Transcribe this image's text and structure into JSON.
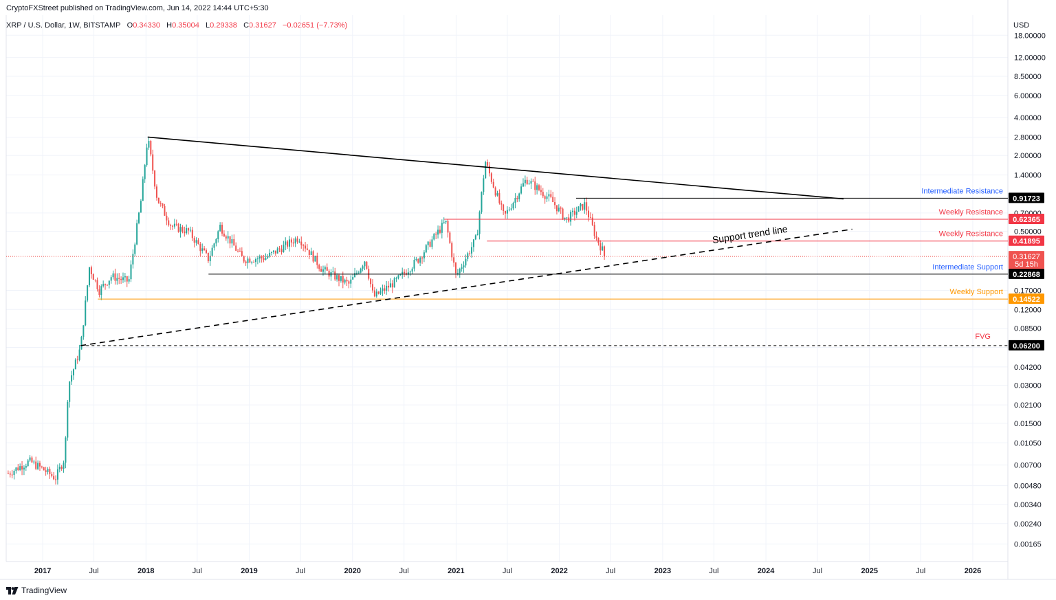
{
  "header": {
    "publisher": "CryptoFXStreet published on TradingView.com, Jun 14, 2022 14:44 UTC+5:30"
  },
  "legend": {
    "symbol": "XRP / U.S. Dollar, 1W, BITSTAMP",
    "open_label": "O",
    "open": "0.34330",
    "high_label": "H",
    "high": "0.35004",
    "low_label": "L",
    "low": "0.29338",
    "close_label": "C",
    "close": "0.31627",
    "change": "−0.02651 (−7.73%)"
  },
  "footer": {
    "brand": "TradingView"
  },
  "colors": {
    "up": "#26a69a",
    "down": "#ef5350",
    "resistance": "#f23645",
    "support_blue": "#2962ff",
    "weekly_support": "#ff9800",
    "black": "#000000"
  },
  "chart_data": {
    "type": "candlestick",
    "title": "XRP / U.S. Dollar, 1W, BITSTAMP",
    "currency_label": "USD",
    "y_scale": "log",
    "ylim": [
      0.0012,
      26
    ],
    "y_ticks": [
      "18.00000",
      "12.00000",
      "8.50000",
      "6.00000",
      "4.00000",
      "2.80000",
      "2.00000",
      "1.40000",
      "0.70000",
      "0.50000",
      "0.17000",
      "0.12000",
      "0.08500",
      "0.06000",
      "0.04200",
      "0.03000",
      "0.02100",
      "0.01500",
      "0.01050",
      "0.00700",
      "0.00480",
      "0.00340",
      "0.00240",
      "0.00165"
    ],
    "x_ticks": [
      "2017",
      "Jul",
      "2018",
      "Jul",
      "2019",
      "Jul",
      "2020",
      "Jul",
      "2021",
      "Jul",
      "2022",
      "Jul",
      "2023",
      "Jul",
      "2024",
      "Jul",
      "2025",
      "Jul",
      "2026"
    ],
    "price_path": [
      [
        "2016-09-01",
        0.006
      ],
      [
        "2016-11-15",
        0.0075
      ],
      [
        "2017-01-01",
        0.0065
      ],
      [
        "2017-02-15",
        0.0055
      ],
      [
        "2017-03-20",
        0.008
      ],
      [
        "2017-04-01",
        0.03
      ],
      [
        "2017-05-15",
        0.06
      ],
      [
        "2017-06-15",
        0.26
      ],
      [
        "2017-07-20",
        0.17
      ],
      [
        "2017-09-01",
        0.22
      ],
      [
        "2017-11-01",
        0.2
      ],
      [
        "2017-12-15",
        0.9
      ],
      [
        "2018-01-07",
        2.8
      ],
      [
        "2018-02-10",
        0.9
      ],
      [
        "2018-04-01",
        0.55
      ],
      [
        "2018-06-01",
        0.5
      ],
      [
        "2018-08-10",
        0.3
      ],
      [
        "2018-09-20",
        0.55
      ],
      [
        "2018-12-10",
        0.3
      ],
      [
        "2019-03-01",
        0.31
      ],
      [
        "2019-06-25",
        0.45
      ],
      [
        "2019-09-15",
        0.25
      ],
      [
        "2019-12-20",
        0.19
      ],
      [
        "2020-02-15",
        0.3
      ],
      [
        "2020-03-15",
        0.15
      ],
      [
        "2020-06-01",
        0.2
      ],
      [
        "2020-08-20",
        0.3
      ],
      [
        "2020-11-25",
        0.6
      ],
      [
        "2021-01-01",
        0.22
      ],
      [
        "2021-03-15",
        0.45
      ],
      [
        "2021-04-14",
        1.8
      ],
      [
        "2021-06-20",
        0.65
      ],
      [
        "2021-09-06",
        1.3
      ],
      [
        "2021-12-01",
        0.9
      ],
      [
        "2022-01-25",
        0.62
      ],
      [
        "2022-04-01",
        0.82
      ],
      [
        "2022-05-10",
        0.45
      ],
      [
        "2022-06-14",
        0.31627
      ]
    ],
    "levels": [
      {
        "label": "Intermediate Resistance",
        "price": 0.91723,
        "value_label": "0.91723",
        "color": "#2962ff",
        "tag_color": "#000000",
        "start": "2022-03-01"
      },
      {
        "label": "Weekly Resistance",
        "price": 0.62365,
        "value_label": "0.62365",
        "color": "#f23645",
        "tag_color": "#f23645",
        "start": "2020-11-20"
      },
      {
        "label": "Weekly Resistance",
        "price": 0.41895,
        "value_label": "0.41895",
        "color": "#f23645",
        "tag_color": "#f23645",
        "start": "2021-04-20"
      },
      {
        "label": "Intermediate Support",
        "price": 0.22868,
        "value_label": "0.22868",
        "color": "#2962ff",
        "tag_color": "#000000",
        "start": "2018-08-10"
      },
      {
        "label": "Weekly Support",
        "price": 0.14522,
        "value_label": "0.14522",
        "color": "#ff9800",
        "tag_color": "#ff9800",
        "start": "2017-07-15"
      },
      {
        "label": "FVG",
        "price": 0.062,
        "value_label": "0.06200",
        "color": "#f23645",
        "tag_color": "#000000",
        "start": "2017-05-15"
      }
    ],
    "current_price": {
      "value_label": "0.31627",
      "countdown": "5d 15h",
      "price": 0.31627
    },
    "trendlines": [
      {
        "name": "Descending resistance",
        "from": [
          "2018-01-07",
          2.8
        ],
        "to": [
          "2024-10-01",
          0.905
        ],
        "style": "solid"
      },
      {
        "label": "Support trend line",
        "from": [
          "2017-05-15",
          0.062
        ],
        "to": [
          "2024-11-01",
          0.52
        ],
        "style": "dashed"
      }
    ]
  }
}
